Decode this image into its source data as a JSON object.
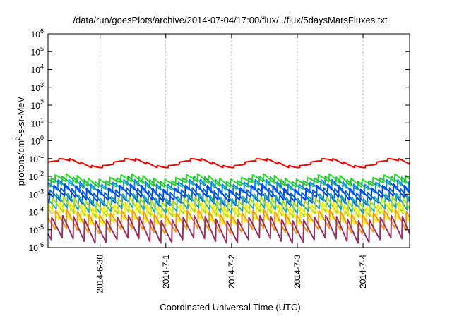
{
  "chart_data": {
    "type": "line",
    "title": "/data/run/goesPlots/archive/2014-07-04/17:00/flux/../flux/5daysMarsFluxes.txt",
    "xlabel": "Coordinated Universal Time (UTC)",
    "ylabel_main": "protons/cm",
    "ylabel_sup": "2",
    "ylabel_rest": "-s-sr-MeV",
    "y_scale": "log",
    "ylim": [
      1e-06,
      1000000.0
    ],
    "y_ticks": [
      {
        "base": "10",
        "exp": "6",
        "value": 1000000.0
      },
      {
        "base": "10",
        "exp": "5",
        "value": 100000.0
      },
      {
        "base": "10",
        "exp": "4",
        "value": 10000.0
      },
      {
        "base": "10",
        "exp": "3",
        "value": 1000.0
      },
      {
        "base": "10",
        "exp": "2",
        "value": 100.0
      },
      {
        "base": "10",
        "exp": "1",
        "value": 10.0
      },
      {
        "base": "10",
        "exp": "0",
        "value": 1.0
      },
      {
        "base": "10",
        "exp": "-1",
        "value": 0.1
      },
      {
        "base": "10",
        "exp": "-2",
        "value": 0.01
      },
      {
        "base": "10",
        "exp": "-3",
        "value": 0.001
      },
      {
        "base": "10",
        "exp": "-4",
        "value": 0.0001
      },
      {
        "base": "10",
        "exp": "-5",
        "value": 1e-05
      },
      {
        "base": "10",
        "exp": "-6",
        "value": 1e-06
      }
    ],
    "x_range": [
      "2014-06-29 05:00",
      "2014-07-04 17:00"
    ],
    "x_ticks": [
      "2014-6-30",
      "2014-7-1",
      "2014-7-2",
      "2014-7-3",
      "2014-7-4"
    ],
    "x_tick_times": [
      "2014-06-30 00:00",
      "2014-07-01 00:00",
      "2014-07-02 00:00",
      "2014-07-03 00:00",
      "2014-07-04 00:00"
    ],
    "grid": true,
    "legend": "none",
    "sawtooth_period_hours": 4,
    "slow_period_hours": 24,
    "series": [
      {
        "color": "#ee0000",
        "base": 0.055,
        "sawtooth_amp": 0.12,
        "slow_amp": 0.22
      },
      {
        "color": "#22dd22",
        "base": 0.006,
        "sawtooth_amp": 0.45,
        "slow_amp": 0.15
      },
      {
        "color": "#33bb55",
        "base": 0.0042,
        "sawtooth_amp": 0.5,
        "slow_amp": 0.15
      },
      {
        "color": "#1188ff",
        "base": 0.0025,
        "sawtooth_amp": 0.6,
        "slow_amp": 0.15
      },
      {
        "color": "#0044ee",
        "base": 0.0012,
        "sawtooth_amp": 0.7,
        "slow_amp": 0.15
      },
      {
        "color": "#1166cc",
        "base": 0.0007,
        "sawtooth_amp": 0.75,
        "slow_amp": 0.15
      },
      {
        "color": "#22aaaa",
        "base": 0.0003,
        "sawtooth_amp": 0.85,
        "slow_amp": 0.15
      },
      {
        "color": "#aadd22",
        "base": 0.00018,
        "sawtooth_amp": 0.9,
        "slow_amp": 0.15
      },
      {
        "color": "#ffee00",
        "base": 8e-05,
        "sawtooth_amp": 1.0,
        "slow_amp": 0.15
      },
      {
        "color": "#ee9922",
        "base": 3e-05,
        "sawtooth_amp": 1.1,
        "slow_amp": 0.15
      },
      {
        "color": "#993366",
        "base": 1.1e-05,
        "sawtooth_amp": 1.3,
        "slow_amp": 0.15
      }
    ]
  }
}
